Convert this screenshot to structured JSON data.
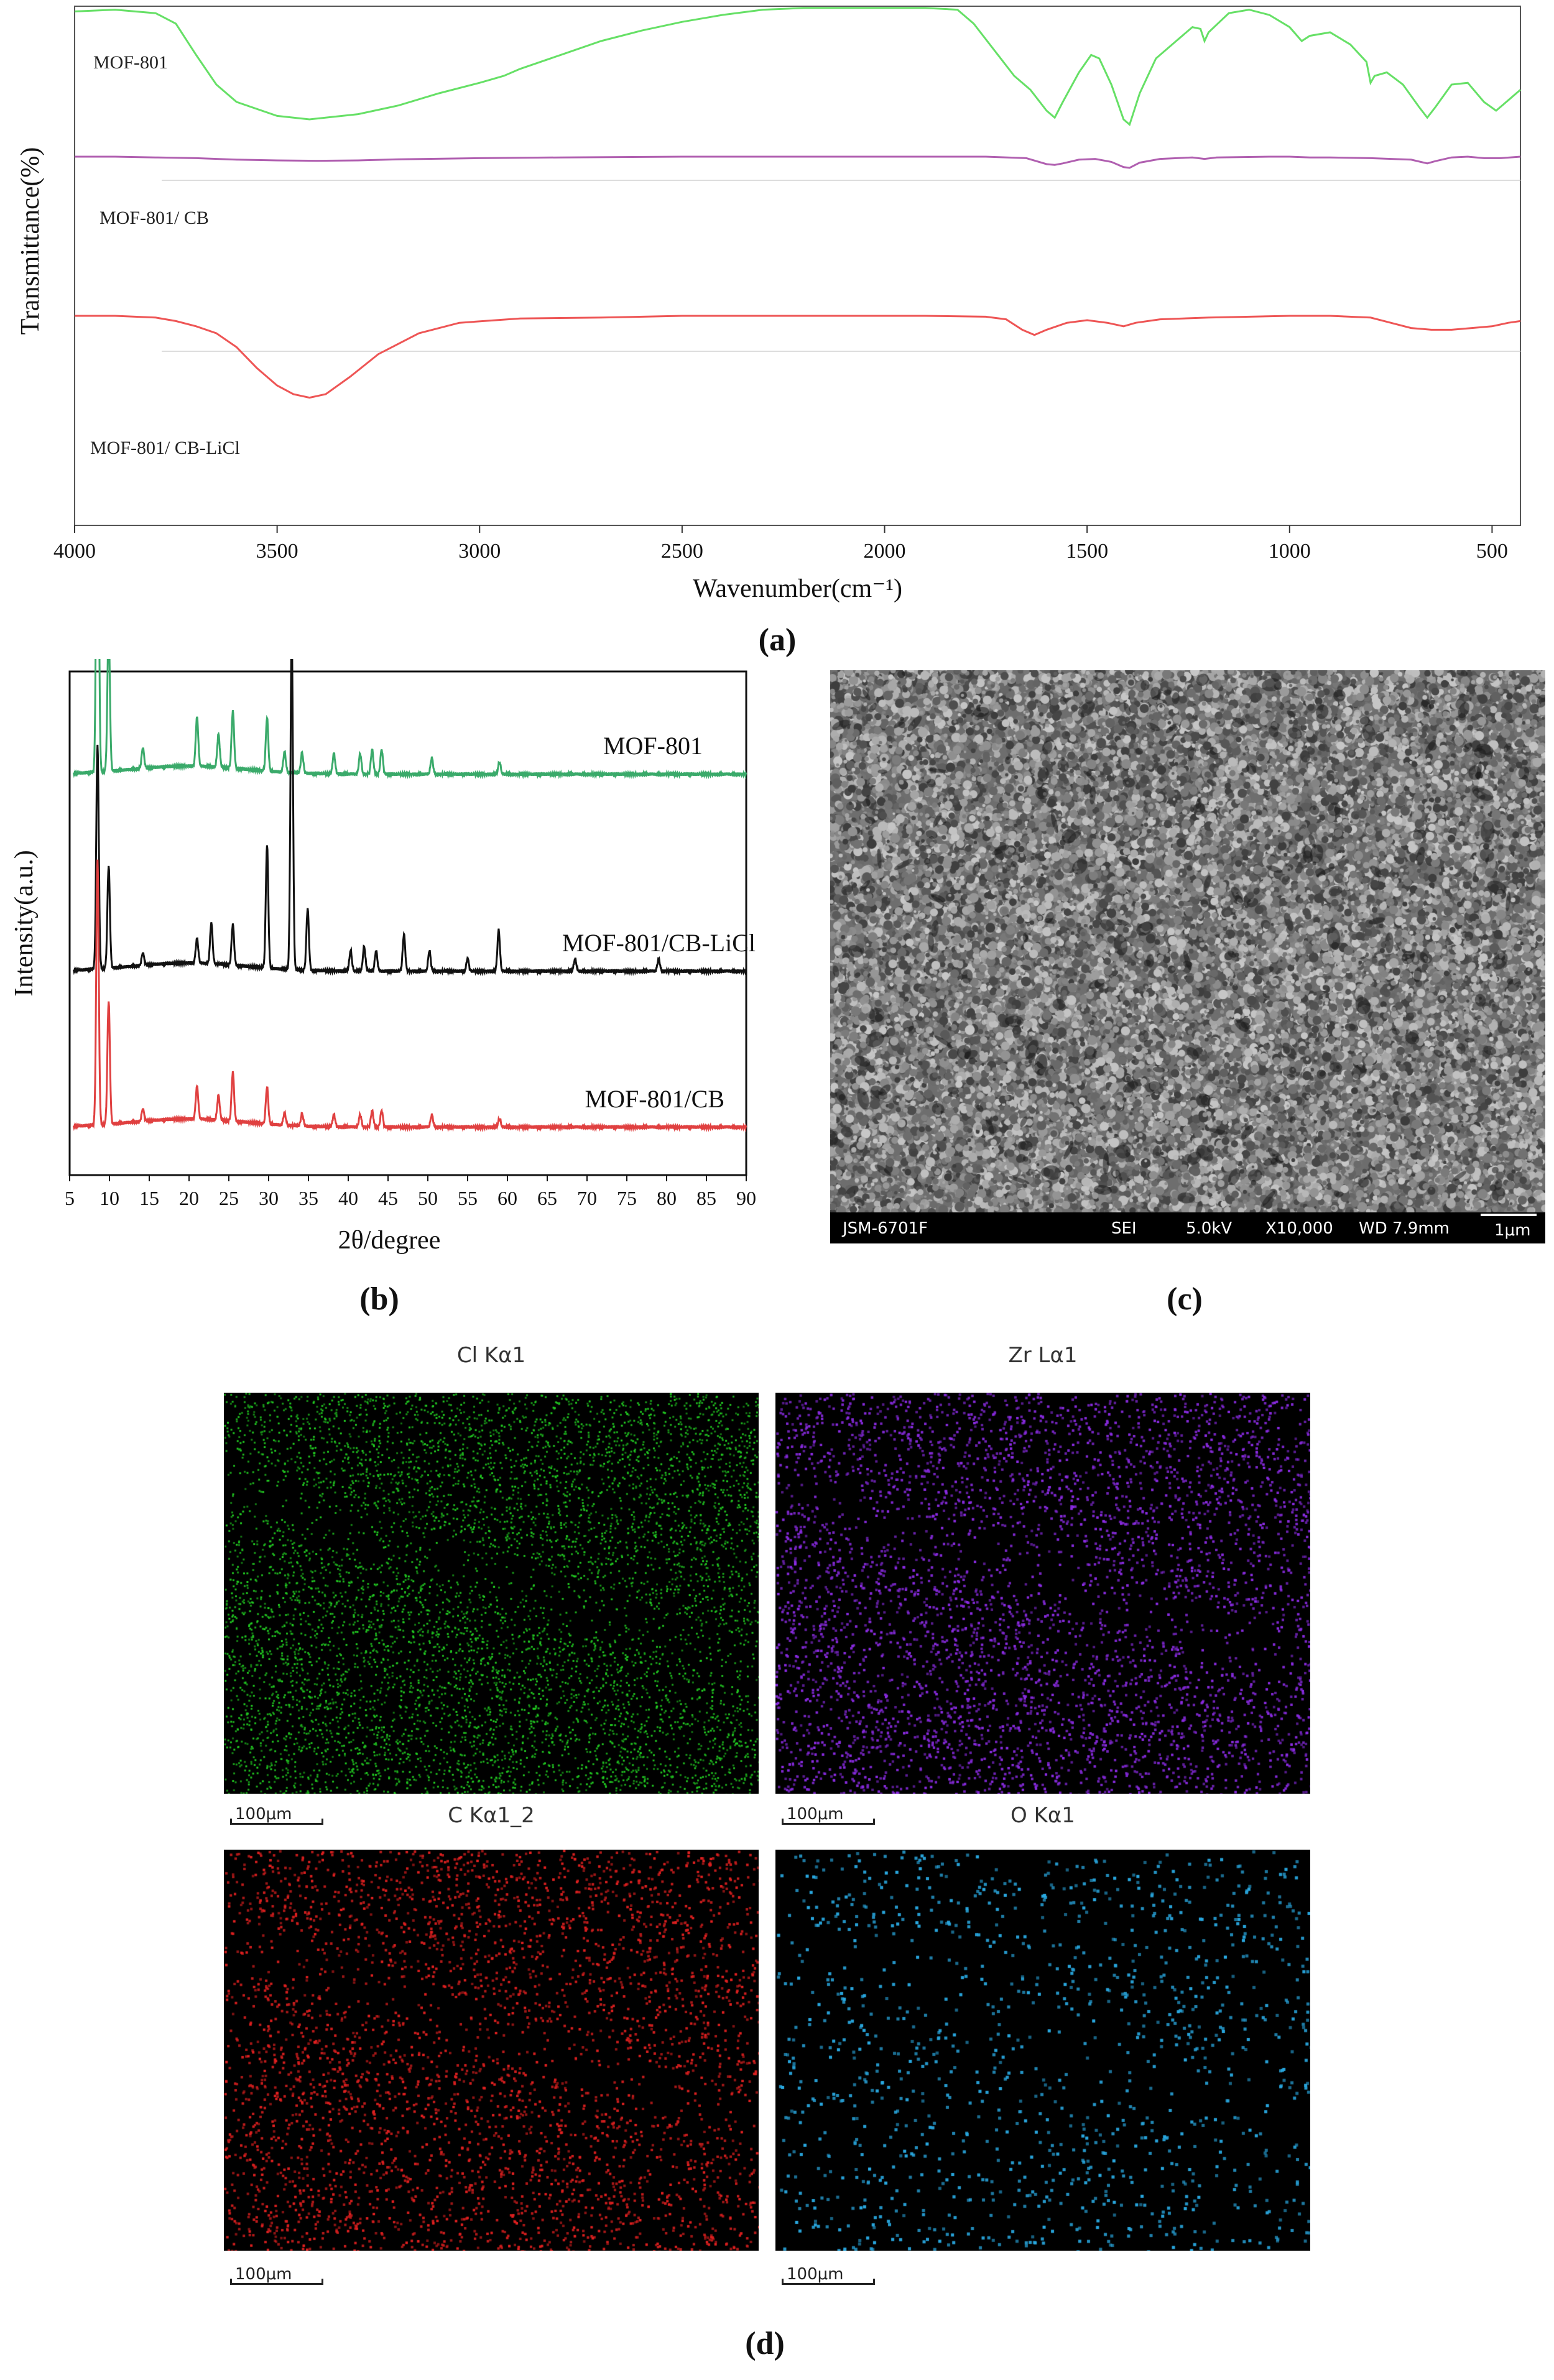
{
  "chart_data": [
    {
      "type": "line",
      "panel": "(a)",
      "xlabel": "Wavenumber(cm⁻¹)",
      "ylabel": "Transmittance(%)",
      "xlim": [
        4000,
        430
      ],
      "x_reversed": true,
      "x_ticks": [
        4000,
        3500,
        3000,
        2500,
        2000,
        1500,
        1000,
        500
      ],
      "series": [
        {
          "name": "MOF-801",
          "color": "#66e066",
          "points": [
            [
              4000,
              0.97
            ],
            [
              3900,
              0.98
            ],
            [
              3800,
              0.96
            ],
            [
              3750,
              0.9
            ],
            [
              3700,
              0.72
            ],
            [
              3650,
              0.55
            ],
            [
              3600,
              0.45
            ],
            [
              3500,
              0.37
            ],
            [
              3420,
              0.35
            ],
            [
              3300,
              0.38
            ],
            [
              3200,
              0.43
            ],
            [
              3100,
              0.5
            ],
            [
              3000,
              0.56
            ],
            [
              2940,
              0.6
            ],
            [
              2900,
              0.64
            ],
            [
              2800,
              0.72
            ],
            [
              2700,
              0.8
            ],
            [
              2600,
              0.86
            ],
            [
              2500,
              0.91
            ],
            [
              2400,
              0.95
            ],
            [
              2300,
              0.98
            ],
            [
              2200,
              0.99
            ],
            [
              2100,
              0.99
            ],
            [
              2000,
              0.99
            ],
            [
              1900,
              0.99
            ],
            [
              1820,
              0.98
            ],
            [
              1780,
              0.9
            ],
            [
              1720,
              0.72
            ],
            [
              1680,
              0.6
            ],
            [
              1640,
              0.52
            ],
            [
              1600,
              0.4
            ],
            [
              1580,
              0.36
            ],
            [
              1560,
              0.45
            ],
            [
              1520,
              0.62
            ],
            [
              1490,
              0.72
            ],
            [
              1470,
              0.7
            ],
            [
              1440,
              0.55
            ],
            [
              1410,
              0.35
            ],
            [
              1395,
              0.32
            ],
            [
              1370,
              0.5
            ],
            [
              1330,
              0.7
            ],
            [
              1280,
              0.8
            ],
            [
              1240,
              0.88
            ],
            [
              1220,
              0.87
            ],
            [
              1210,
              0.8
            ],
            [
              1200,
              0.85
            ],
            [
              1150,
              0.96
            ],
            [
              1100,
              0.98
            ],
            [
              1050,
              0.95
            ],
            [
              1000,
              0.88
            ],
            [
              970,
              0.8
            ],
            [
              950,
              0.83
            ],
            [
              900,
              0.85
            ],
            [
              850,
              0.78
            ],
            [
              810,
              0.68
            ],
            [
              800,
              0.56
            ],
            [
              790,
              0.6
            ],
            [
              760,
              0.62
            ],
            [
              720,
              0.55
            ],
            [
              680,
              0.42
            ],
            [
              660,
              0.36
            ],
            [
              640,
              0.42
            ],
            [
              600,
              0.55
            ],
            [
              560,
              0.56
            ],
            [
              520,
              0.45
            ],
            [
              490,
              0.4
            ],
            [
              460,
              0.46
            ],
            [
              430,
              0.52
            ]
          ]
        },
        {
          "name": "MOF-801/ CB",
          "color": "#b05fb0",
          "points": [
            [
              4000,
              0.9
            ],
            [
              3900,
              0.9
            ],
            [
              3800,
              0.89
            ],
            [
              3700,
              0.88
            ],
            [
              3600,
              0.86
            ],
            [
              3500,
              0.85
            ],
            [
              3400,
              0.845
            ],
            [
              3300,
              0.85
            ],
            [
              3200,
              0.865
            ],
            [
              3000,
              0.88
            ],
            [
              2800,
              0.89
            ],
            [
              2500,
              0.9
            ],
            [
              2200,
              0.9
            ],
            [
              1900,
              0.9
            ],
            [
              1750,
              0.9
            ],
            [
              1650,
              0.88
            ],
            [
              1600,
              0.8
            ],
            [
              1580,
              0.79
            ],
            [
              1560,
              0.81
            ],
            [
              1520,
              0.86
            ],
            [
              1480,
              0.87
            ],
            [
              1440,
              0.83
            ],
            [
              1410,
              0.76
            ],
            [
              1395,
              0.75
            ],
            [
              1370,
              0.82
            ],
            [
              1320,
              0.87
            ],
            [
              1240,
              0.89
            ],
            [
              1210,
              0.87
            ],
            [
              1180,
              0.89
            ],
            [
              1050,
              0.9
            ],
            [
              1000,
              0.9
            ],
            [
              950,
              0.89
            ],
            [
              900,
              0.89
            ],
            [
              800,
              0.88
            ],
            [
              700,
              0.86
            ],
            [
              660,
              0.81
            ],
            [
              640,
              0.84
            ],
            [
              600,
              0.89
            ],
            [
              560,
              0.9
            ],
            [
              520,
              0.88
            ],
            [
              480,
              0.88
            ],
            [
              430,
              0.9
            ]
          ]
        },
        {
          "name": "MOF-801/ CB-LiCl",
          "color": "#ee5555",
          "points": [
            [
              4000,
              0.9
            ],
            [
              3900,
              0.9
            ],
            [
              3800,
              0.89
            ],
            [
              3750,
              0.87
            ],
            [
              3700,
              0.84
            ],
            [
              3650,
              0.8
            ],
            [
              3600,
              0.72
            ],
            [
              3550,
              0.6
            ],
            [
              3500,
              0.5
            ],
            [
              3460,
              0.45
            ],
            [
              3420,
              0.43
            ],
            [
              3380,
              0.45
            ],
            [
              3320,
              0.55
            ],
            [
              3250,
              0.68
            ],
            [
              3150,
              0.8
            ],
            [
              3050,
              0.86
            ],
            [
              2900,
              0.885
            ],
            [
              2700,
              0.89
            ],
            [
              2500,
              0.9
            ],
            [
              2200,
              0.9
            ],
            [
              1900,
              0.9
            ],
            [
              1750,
              0.895
            ],
            [
              1700,
              0.88
            ],
            [
              1660,
              0.82
            ],
            [
              1630,
              0.79
            ],
            [
              1600,
              0.82
            ],
            [
              1550,
              0.86
            ],
            [
              1500,
              0.875
            ],
            [
              1450,
              0.86
            ],
            [
              1410,
              0.84
            ],
            [
              1380,
              0.86
            ],
            [
              1320,
              0.88
            ],
            [
              1200,
              0.89
            ],
            [
              1000,
              0.9
            ],
            [
              900,
              0.9
            ],
            [
              800,
              0.89
            ],
            [
              750,
              0.86
            ],
            [
              700,
              0.83
            ],
            [
              650,
              0.82
            ],
            [
              600,
              0.82
            ],
            [
              550,
              0.83
            ],
            [
              500,
              0.84
            ],
            [
              460,
              0.86
            ],
            [
              430,
              0.87
            ]
          ]
        }
      ]
    },
    {
      "type": "line",
      "panel": "(b)",
      "xlabel": "2θ/degree",
      "ylabel": "Intensity(a.u.)",
      "xlim": [
        5,
        90
      ],
      "x_ticks": [
        5,
        10,
        15,
        20,
        25,
        30,
        35,
        40,
        45,
        50,
        55,
        60,
        65,
        70,
        75,
        80,
        85,
        90
      ],
      "series": [
        {
          "name": "MOF-801",
          "color": "#3aaa6a",
          "baseline": 0.78,
          "peaks": [
            [
              8.5,
              1.0
            ],
            [
              9.9,
              0.35
            ],
            [
              14.2,
              0.05
            ],
            [
              21.0,
              0.12
            ],
            [
              23.7,
              0.08
            ],
            [
              25.5,
              0.14
            ],
            [
              29.8,
              0.13
            ],
            [
              32.0,
              0.05
            ],
            [
              34.2,
              0.05
            ],
            [
              38.2,
              0.05
            ],
            [
              41.5,
              0.05
            ],
            [
              43.0,
              0.06
            ],
            [
              44.2,
              0.06
            ],
            [
              50.5,
              0.04
            ],
            [
              59.0,
              0.03
            ]
          ]
        },
        {
          "name": "MOF-801/CB-LiCl",
          "color": "#111111",
          "baseline": 0.3,
          "peaks": [
            [
              8.5,
              0.55
            ],
            [
              9.9,
              0.25
            ],
            [
              14.2,
              0.03
            ],
            [
              21.0,
              0.06
            ],
            [
              22.8,
              0.1
            ],
            [
              25.5,
              0.1
            ],
            [
              29.8,
              0.3
            ],
            [
              32.9,
              0.82
            ],
            [
              34.9,
              0.15
            ],
            [
              40.3,
              0.05
            ],
            [
              42.0,
              0.06
            ],
            [
              43.5,
              0.05
            ],
            [
              47.0,
              0.09
            ],
            [
              50.2,
              0.05
            ],
            [
              55.0,
              0.03
            ],
            [
              58.9,
              0.1
            ],
            [
              68.5,
              0.03
            ],
            [
              79.0,
              0.03
            ]
          ]
        },
        {
          "name": "MOF-801/CB",
          "color": "#e04040",
          "baseline": -0.08,
          "peaks": [
            [
              8.5,
              0.65
            ],
            [
              9.9,
              0.3
            ],
            [
              14.2,
              0.03
            ],
            [
              21.0,
              0.08
            ],
            [
              23.7,
              0.06
            ],
            [
              25.5,
              0.12
            ],
            [
              29.8,
              0.09
            ],
            [
              32.0,
              0.03
            ],
            [
              34.2,
              0.03
            ],
            [
              38.2,
              0.03
            ],
            [
              41.5,
              0.03
            ],
            [
              43.0,
              0.04
            ],
            [
              44.2,
              0.04
            ],
            [
              50.5,
              0.03
            ],
            [
              59.0,
              0.02
            ]
          ]
        }
      ]
    }
  ],
  "panels": {
    "a_label": "(a)",
    "b_label": "(b)",
    "c_label": "(c)",
    "d_label": "(d)"
  },
  "sem": {
    "instrument": "JSM-6701F",
    "mode": "SEI",
    "voltage": "5.0kV",
    "magnification": "X10,000",
    "working_distance": "WD 7.9mm",
    "scale": "1μm"
  },
  "eds": {
    "maps": [
      {
        "title": "Cl Kα1",
        "color": "#22cc22",
        "density": 7000,
        "size": 3
      },
      {
        "title": "Zr Lα1",
        "color": "#8a2be2",
        "density": 4500,
        "size": 4
      },
      {
        "title": "C Kα1_2",
        "color": "#e02020",
        "density": 3800,
        "size": 4
      },
      {
        "title": "O Kα1",
        "color": "#29a8e0",
        "density": 1300,
        "size": 5
      }
    ],
    "scale": "100μm"
  }
}
